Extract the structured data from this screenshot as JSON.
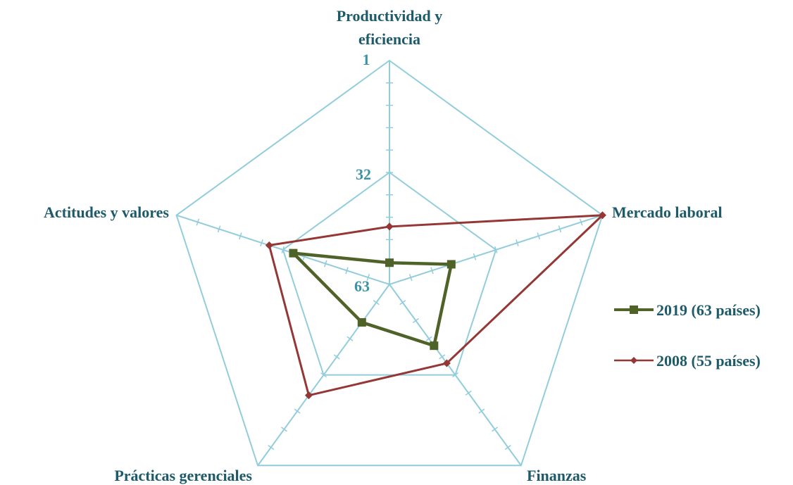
{
  "chart_data": {
    "type": "radar",
    "categories": [
      "Productividad y eficiencia",
      "Mercado laboral",
      "Finanzas",
      "Prácticas gerenciales",
      "Actitudes y valores"
    ],
    "category_label_lines": [
      [
        "Productividad y",
        "eficiencia"
      ],
      [
        "Mercado laboral"
      ],
      [
        "Finanzas"
      ],
      [
        "Prácticas gerenciales"
      ],
      [
        "Actitudes y valores"
      ]
    ],
    "axis": {
      "best": 1,
      "worst": 63,
      "tick_labels": [
        "1",
        "32",
        "63"
      ],
      "inverted": true
    },
    "series": [
      {
        "name": "2019 (63 países)",
        "color": "#4f6228",
        "marker": "square",
        "values": [
          57,
          45,
          42,
          50,
          35
        ]
      },
      {
        "name": "2008 (55 países)",
        "color": "#953735",
        "marker": "diamond",
        "values": [
          47,
          1,
          36,
          25,
          28
        ]
      }
    ],
    "legend_position": "right",
    "grid_color": "#92cddc"
  }
}
